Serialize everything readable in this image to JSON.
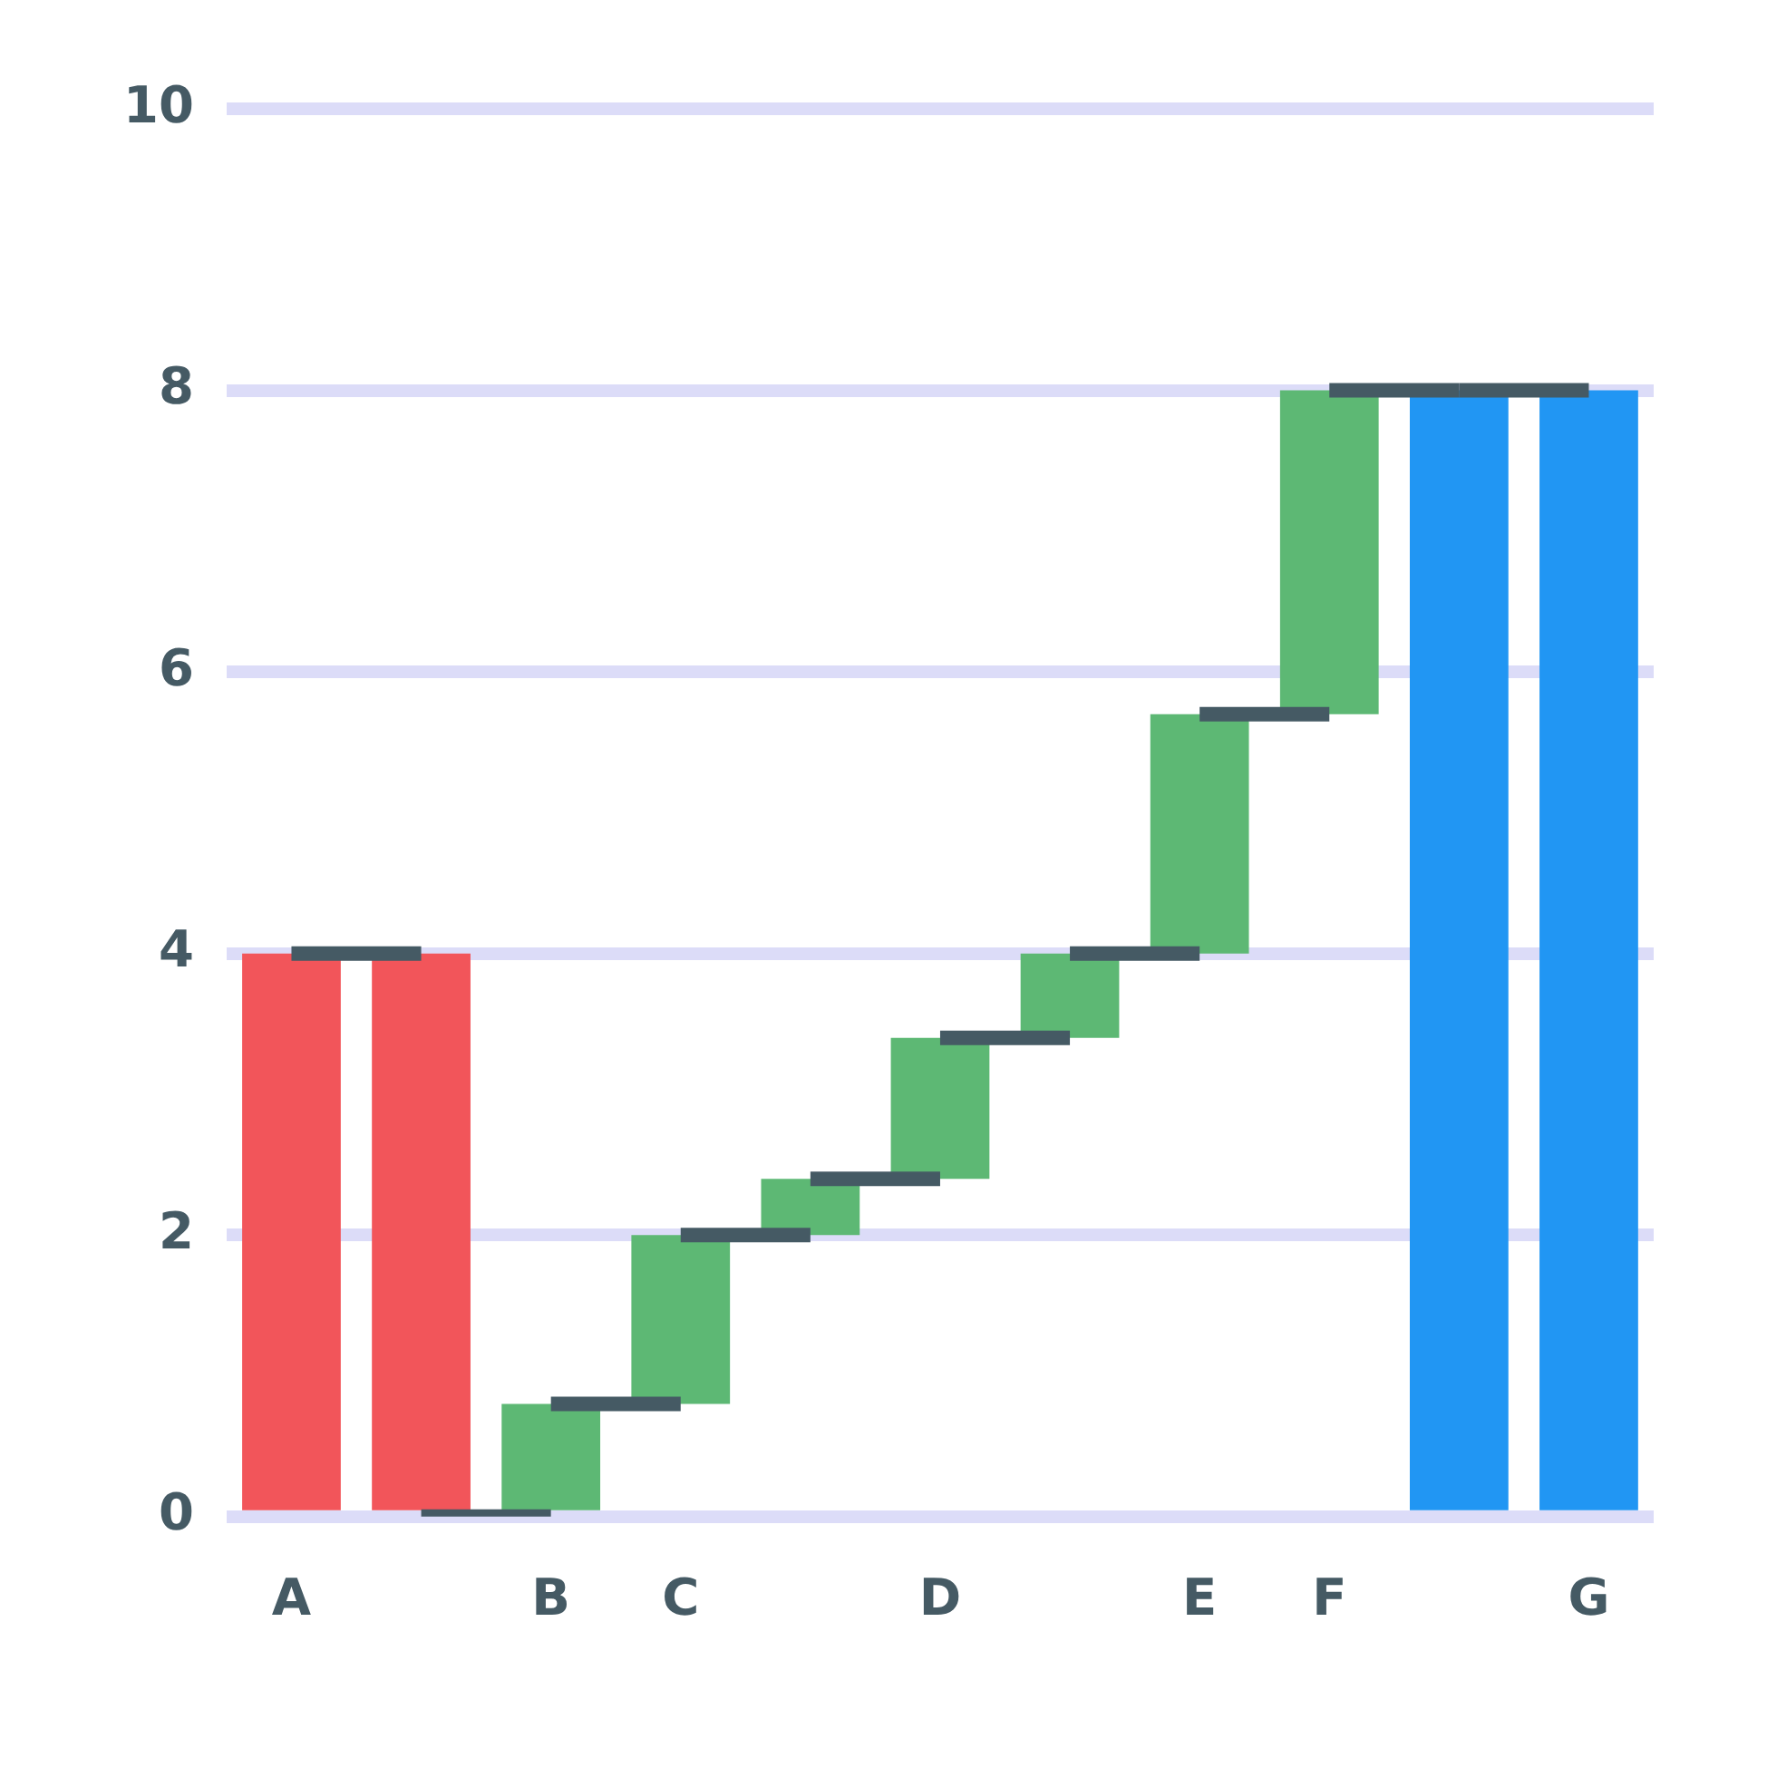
{
  "chart_data": {
    "type": "bar",
    "categories": [
      "A",
      null,
      "B",
      "C",
      null,
      "D",
      null,
      "E",
      "F",
      null,
      "G"
    ],
    "series": [
      {
        "colors": [
          "#f2555a",
          "#f2555a",
          "#5db874",
          "#5db874",
          "#5db874",
          "#5db874",
          "#5db874",
          "#5db874",
          "#5db874",
          "#2196f3",
          "#2196f3"
        ],
        "values": [
          4,
          4,
          0.8,
          1.2,
          0.4,
          1.0,
          0.6,
          1.7,
          2.3,
          8,
          8
        ],
        "base": [
          0,
          0,
          0,
          0.8,
          2.0,
          2.4,
          3.4,
          4.0,
          5.7,
          0,
          0
        ]
      },
      {
        "type": "line",
        "color": "#455a64",
        "values": [
          4,
          4,
          null,
          2,
          2,
          null,
          4,
          4,
          null,
          8,
          8
        ]
      },
      {
        "type": "line",
        "color": "#455a64",
        "values": [
          null,
          0,
          0,
          null,
          2.4,
          2.4,
          null,
          5.7,
          5.7,
          null,
          null
        ]
      },
      {
        "type": "line",
        "color": "#455a64",
        "values": [
          null,
          null,
          0.8,
          0.8,
          null,
          3.4,
          3.4,
          null,
          8,
          8,
          null
        ]
      }
    ],
    "ylim": [
      0,
      10
    ],
    "yticks": [
      0,
      2,
      4,
      6,
      8,
      10
    ],
    "grid": "y",
    "legend": false
  }
}
